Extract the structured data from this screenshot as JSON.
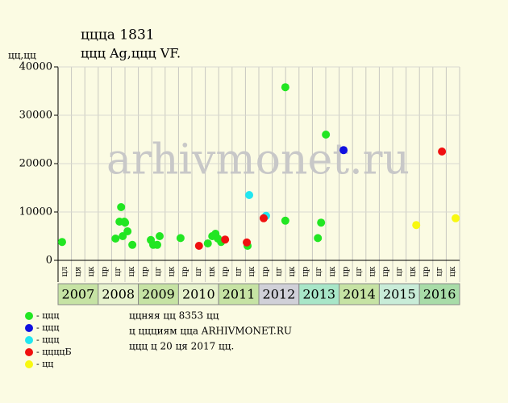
{
  "chart_data": {
    "type": "scatter",
    "title": "ццца 1831",
    "subtitle": "ццц Ag,ццц VF.",
    "y_label": "цц,цц",
    "watermark": "arhivmonet.ru",
    "xlim": [
      2007,
      2017
    ],
    "ylim": [
      0,
      40000
    ],
    "yticks": [
      0,
      10000,
      20000,
      30000,
      40000
    ],
    "grid": true,
    "column_labels": [
      "цл",
      "ця",
      "цк",
      "цр",
      "цг",
      "цк",
      "цр",
      "цг",
      "цк",
      "цр",
      "цг",
      "цк",
      "цр",
      "цг",
      "цк",
      "цр",
      "цг",
      "цк",
      "цр",
      "цг",
      "цк",
      "цр",
      "цг",
      "цк",
      "цр",
      "цг",
      "цк",
      "цр",
      "цг",
      "цк"
    ],
    "year_labels": [
      {
        "label": "2007",
        "color": "#c6e3a4"
      },
      {
        "label": "2008",
        "color": "#e6f2cc"
      },
      {
        "label": "2009",
        "color": "#c6e3a4"
      },
      {
        "label": "2010",
        "color": "#e6f2cc"
      },
      {
        "label": "2011",
        "color": "#c6e3a4"
      },
      {
        "label": "2012",
        "color": "#d0d0d8"
      },
      {
        "label": "2013",
        "color": "#a8e6c8"
      },
      {
        "label": "2014",
        "color": "#c6e3a4"
      },
      {
        "label": "2015",
        "color": "#c8ecd8"
      },
      {
        "label": "2016",
        "color": "#a8dca8"
      }
    ],
    "series": [
      {
        "name": "- ццц",
        "color": "#22e622",
        "x": [
          2007.1,
          2008.43,
          2008.53,
          2008.57,
          2008.61,
          2008.65,
          2008.67,
          2008.73,
          2008.85,
          2009.31,
          2009.37,
          2009.47,
          2009.53,
          2010.05,
          2010.73,
          2010.84,
          2010.92,
          2010.98,
          2011.06,
          2011.72,
          2012.66,
          2012.66,
          2013.47,
          2013.55,
          2013.67
        ],
        "values": [
          3800,
          4500,
          8000,
          11000,
          5000,
          8000,
          7800,
          6000,
          3200,
          4200,
          3200,
          3200,
          5000,
          4600,
          3500,
          5000,
          5500,
          4500,
          3800,
          3000,
          35800,
          8200,
          4600,
          7800,
          26000
        ]
      },
      {
        "name": "- ццц",
        "color": "#1010e0",
        "x": [
          2014.11
        ],
        "values": [
          22800
        ]
      },
      {
        "name": "- ццц",
        "color": "#22e6f0",
        "x": [
          2011.76,
          2012.18
        ],
        "values": [
          13500,
          9200
        ]
      },
      {
        "name": "- ццццБ",
        "color": "#f01010",
        "x": [
          2010.51,
          2011.16,
          2011.7,
          2012.12,
          2016.56
        ],
        "values": [
          3000,
          4300,
          3700,
          8700,
          22500
        ]
      },
      {
        "name": "- цц",
        "color": "#f8f810",
        "x": [
          2015.92,
          2016.9
        ],
        "values": [
          7300,
          8700
        ]
      }
    ],
    "notes": [
      "ццняя цц 8353 цц",
      "ц ццциям цца ARHIVMONET.RU",
      "ццц ц 20 ця 2017 цц."
    ]
  }
}
